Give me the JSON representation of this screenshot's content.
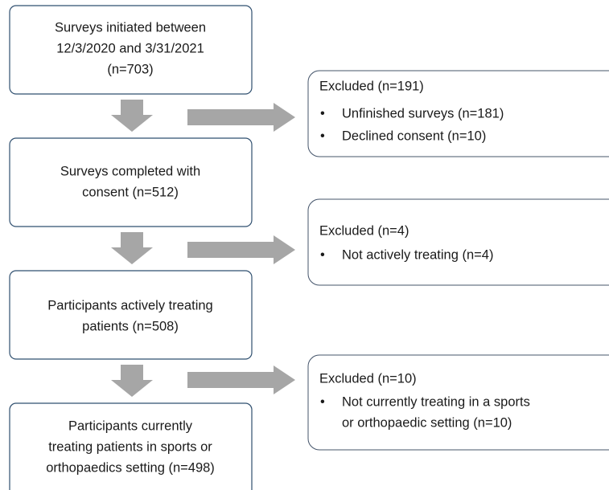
{
  "nodes": [
    {
      "lines": [
        "Surveys initiated between",
        "12/3/2020 and 3/31/2021",
        "(n=703)"
      ]
    },
    {
      "lines": [
        "Surveys completed with",
        "consent (n=512)"
      ]
    },
    {
      "lines": [
        "Participants actively treating",
        "patients (n=508)"
      ]
    },
    {
      "lines": [
        "Participants currently",
        "treating patients in sports or",
        "orthopaedics setting (n=498)"
      ]
    }
  ],
  "exclusions": [
    {
      "title": "Excluded (n=191)",
      "items": [
        [
          "Unfinished surveys (n=181)"
        ],
        [
          "Declined consent (n=10)"
        ]
      ]
    },
    {
      "title": "Excluded (n=4)",
      "items": [
        [
          "Not actively treating (n=4)"
        ]
      ]
    },
    {
      "title": "Excluded (n=10)",
      "items": [
        [
          "Not currently treating in a sports",
          "or orthopaedic setting (n=10)"
        ]
      ]
    }
  ]
}
